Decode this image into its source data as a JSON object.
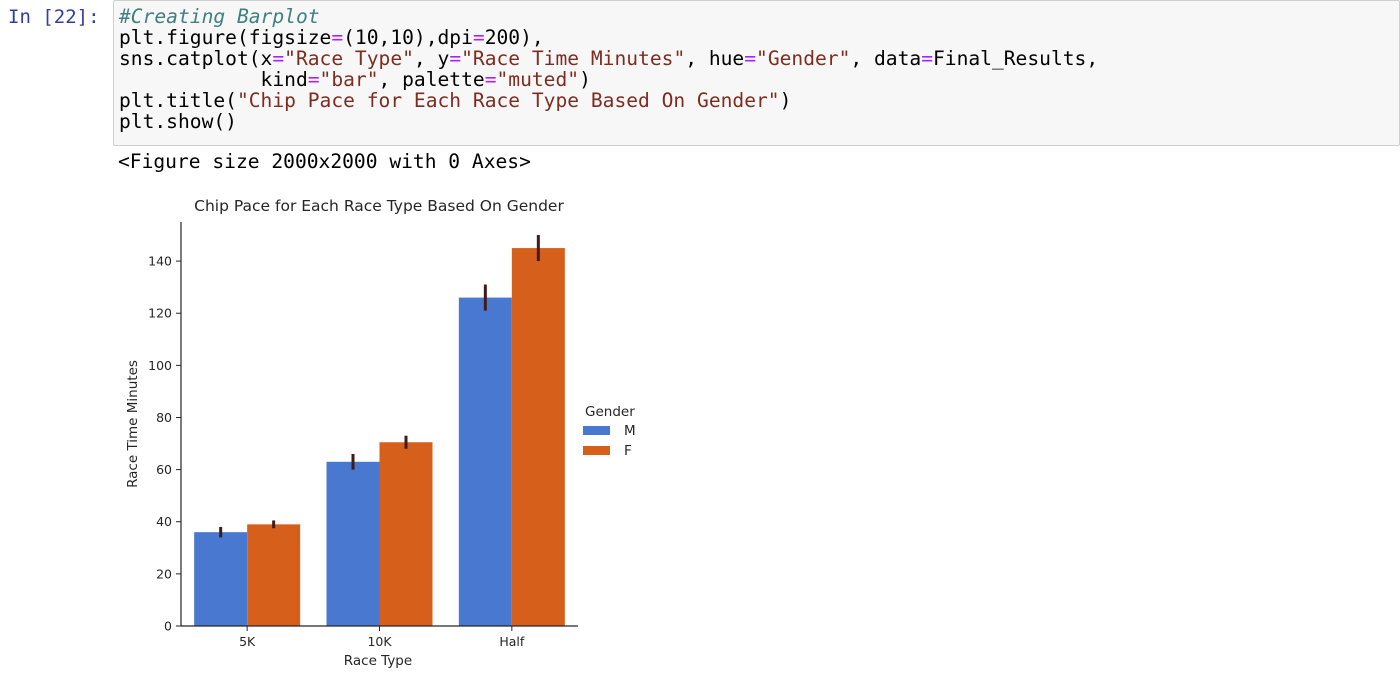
{
  "cell": {
    "prompt": "In [22]:",
    "code": {
      "line1_comment": "#Creating Barplot",
      "line2": {
        "a": "plt.figure(figsize",
        "eq": "=",
        "b": "(10,10),dpi",
        "eq2": "=",
        "c": "200),"
      },
      "line3": {
        "a": "sns.catplot(x",
        "eq": "=",
        "s1": "\"Race Type\"",
        "b": ", y",
        "eq2": "=",
        "s2": "\"Race Time Minutes\"",
        "c": ", hue",
        "eq3": "=",
        "s3": "\"Gender\"",
        "d": ", data",
        "eq4": "=",
        "e": "Final_Results,"
      },
      "line4": {
        "indent": "            kind",
        "eq": "=",
        "s1": "\"bar\"",
        "b": ", palette",
        "eq2": "=",
        "s2": "\"muted\"",
        "c": ")"
      },
      "line5": {
        "a": "plt.title(",
        "s1": "\"Chip Pace for Each Race Type Based On Gender\"",
        "b": ")"
      },
      "line6": "plt.show()"
    },
    "output_text": "<Figure size 2000x2000 with 0 Axes>"
  },
  "colors": {
    "male": "#4878cf",
    "female": "#d65f1b",
    "error_bar": "#421a1a"
  },
  "chart_data": {
    "type": "bar",
    "title": "Chip Pace for Each Race Type Based On Gender",
    "xlabel": "Race Type",
    "ylabel": "Race Time Minutes",
    "categories": [
      "5K",
      "10K",
      "Half"
    ],
    "series": [
      {
        "name": "M",
        "values": [
          36,
          63,
          126
        ],
        "ci": [
          [
            34,
            38
          ],
          [
            60,
            66
          ],
          [
            121,
            131
          ]
        ]
      },
      {
        "name": "F",
        "values": [
          39,
          70.5,
          145
        ],
        "ci": [
          [
            37.5,
            40.5
          ],
          [
            68,
            73
          ],
          [
            140,
            150
          ]
        ]
      }
    ],
    "ylim": [
      0,
      155
    ],
    "yticks": [
      0,
      20,
      40,
      60,
      80,
      100,
      120,
      140
    ],
    "legend_title": "Gender",
    "legend_position": "right",
    "grid": false
  }
}
